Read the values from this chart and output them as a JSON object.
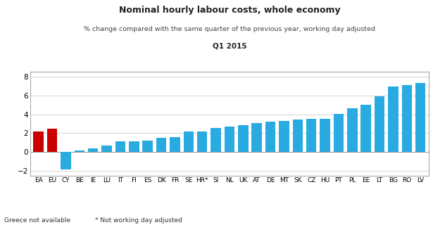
{
  "categories": [
    "EA",
    "EU",
    "CY",
    "BE",
    "IE",
    "LU",
    "IT",
    "FI",
    "ES",
    "DK",
    "FR",
    "SE",
    "HR*",
    "SI",
    "NL",
    "UK",
    "AT",
    "DE",
    "MT",
    "SK",
    "CZ",
    "HU",
    "PT",
    "PL",
    "EE",
    "LT",
    "BG",
    "RO",
    "LV"
  ],
  "values": [
    2.15,
    2.45,
    -1.85,
    0.15,
    0.4,
    0.65,
    1.1,
    1.15,
    1.2,
    1.5,
    1.55,
    2.15,
    2.2,
    2.55,
    2.7,
    2.85,
    3.05,
    3.2,
    3.3,
    3.45,
    3.5,
    3.55,
    4.05,
    4.65,
    5.05,
    5.95,
    6.95,
    7.1,
    7.3
  ],
  "bar_colors_red": [
    "EA",
    "EU"
  ],
  "color_red": "#cc0000",
  "color_blue": "#29abe2",
  "title": "Nominal hourly labour costs, whole economy",
  "subtitle1": "% change compared with the same quarter of the previous year, working day adjusted",
  "subtitle2": "Q1 2015",
  "ylim": [
    -2.5,
    8.5
  ],
  "yticks": [
    -2,
    0,
    2,
    4,
    6,
    8
  ],
  "footnote1": "Greece not available",
  "footnote2": "* Not working day adjusted",
  "background_color": "#ffffff",
  "border_color": "#aaaaaa"
}
